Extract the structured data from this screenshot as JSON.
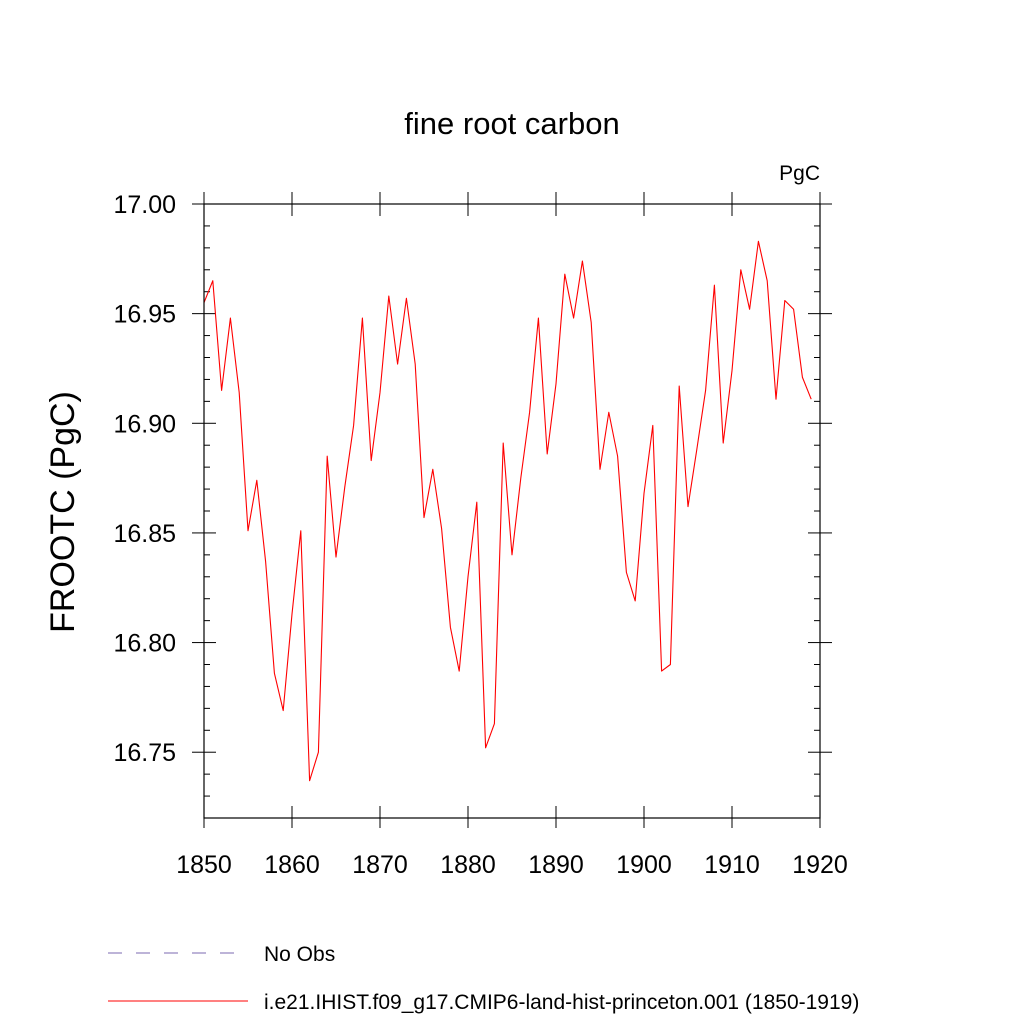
{
  "chart_data": {
    "type": "line",
    "title": "fine root carbon",
    "units_label": "PgC",
    "ylabel": "FROOTC  (PgC)",
    "xlabel": "",
    "xlim": [
      1850,
      1920
    ],
    "ylim": [
      16.72,
      17.0
    ],
    "x_ticks": [
      1850,
      1860,
      1870,
      1880,
      1890,
      1900,
      1910,
      1920
    ],
    "x_tick_labels": [
      "1850",
      "1860",
      "1870",
      "1880",
      "1890",
      "1900",
      "1910",
      "1920"
    ],
    "y_ticks": [
      16.75,
      16.8,
      16.85,
      16.9,
      16.95,
      17.0
    ],
    "y_tick_labels": [
      "16.75",
      "16.80",
      "16.85",
      "16.90",
      "16.95",
      "17.00"
    ],
    "grid": false,
    "legend_position": "bottom-left",
    "series": [
      {
        "name": "No Obs",
        "color": "#7b68b0",
        "style": "dashed",
        "x": [],
        "values": []
      },
      {
        "name": "i.e21.IHIST.f09_g17.CMIP6-land-hist-princeton.001 (1850-1919)",
        "color": "#ff0000",
        "style": "solid",
        "x": [
          1850,
          1851,
          1852,
          1853,
          1854,
          1855,
          1856,
          1857,
          1858,
          1859,
          1860,
          1861,
          1862,
          1863,
          1864,
          1865,
          1866,
          1867,
          1868,
          1869,
          1870,
          1871,
          1872,
          1873,
          1874,
          1875,
          1876,
          1877,
          1878,
          1879,
          1880,
          1881,
          1882,
          1883,
          1884,
          1885,
          1886,
          1887,
          1888,
          1889,
          1890,
          1891,
          1892,
          1893,
          1894,
          1895,
          1896,
          1897,
          1898,
          1899,
          1900,
          1901,
          1902,
          1903,
          1904,
          1905,
          1906,
          1907,
          1908,
          1909,
          1910,
          1911,
          1912,
          1913,
          1914,
          1915,
          1916,
          1917,
          1918,
          1919
        ],
        "values": [
          16.955,
          16.965,
          16.915,
          16.948,
          16.914,
          16.851,
          16.874,
          16.837,
          16.786,
          16.769,
          16.813,
          16.851,
          16.737,
          16.75,
          16.885,
          16.839,
          16.871,
          16.899,
          16.948,
          16.883,
          16.914,
          16.958,
          16.927,
          16.957,
          16.927,
          16.857,
          16.879,
          16.852,
          16.807,
          16.787,
          16.83,
          16.864,
          16.752,
          16.763,
          16.891,
          16.84,
          16.875,
          16.905,
          16.948,
          16.886,
          16.918,
          16.968,
          16.948,
          16.974,
          16.946,
          16.879,
          16.905,
          16.885,
          16.832,
          16.819,
          16.868,
          16.899,
          16.787,
          16.79,
          16.917,
          16.862,
          16.888,
          16.915,
          16.963,
          16.891,
          16.924,
          16.97,
          16.952,
          16.983,
          16.965,
          16.911,
          16.956,
          16.952,
          16.921,
          16.911
        ]
      }
    ]
  }
}
